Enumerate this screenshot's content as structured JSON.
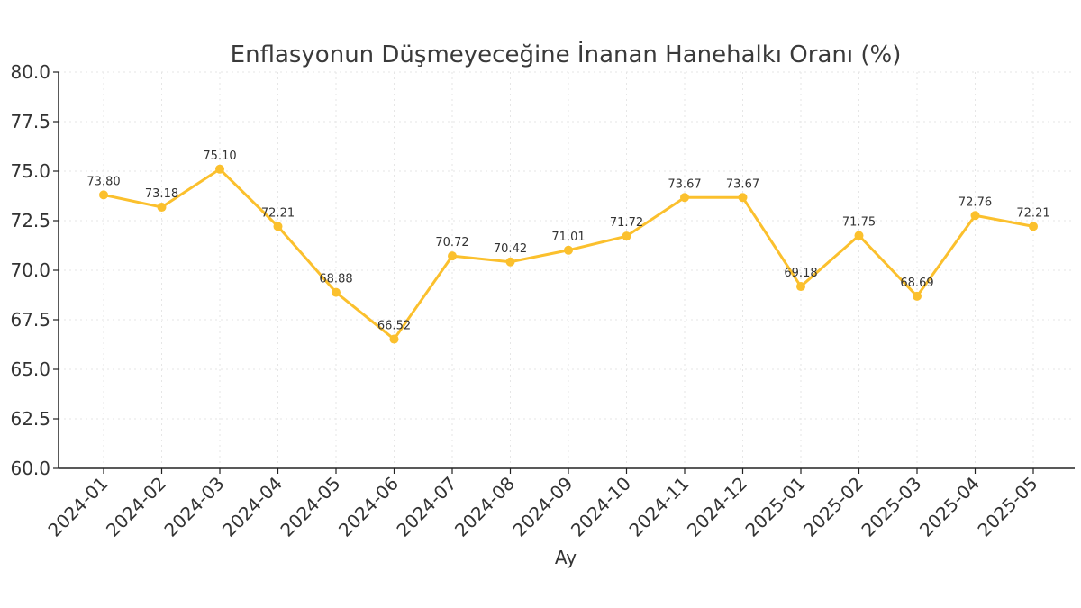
{
  "chart_data": {
    "type": "line",
    "title": "Enflasyonun Düşmeyeceğine İnanan Hanehalkı Oranı (%)",
    "xlabel": "Ay",
    "ylabel": "",
    "categories": [
      "2024-01",
      "2024-02",
      "2024-03",
      "2024-04",
      "2024-05",
      "2024-06",
      "2024-07",
      "2024-08",
      "2024-09",
      "2024-10",
      "2024-11",
      "2024-12",
      "2025-01",
      "2025-02",
      "2025-03",
      "2025-04",
      "2025-05"
    ],
    "series": [
      {
        "values": [
          73.8,
          73.18,
          75.1,
          72.21,
          68.88,
          66.52,
          70.72,
          70.42,
          71.01,
          71.72,
          73.67,
          73.67,
          69.18,
          71.75,
          68.69,
          72.76,
          72.21
        ],
        "labels": [
          "73.80",
          "73.18",
          "75.10",
          "72.21",
          "68.88",
          "66.52",
          "70.72",
          "70.42",
          "71.01",
          "71.72",
          "73.67",
          "73.67",
          "69.18",
          "71.75",
          "68.69",
          "72.76",
          "72.21"
        ],
        "color": "#FBC02D"
      }
    ],
    "ylim": [
      60.0,
      80.0
    ],
    "yticks": [
      "60.0",
      "62.5",
      "65.0",
      "67.5",
      "70.0",
      "72.5",
      "75.0",
      "77.5",
      "80.0"
    ],
    "grid": true,
    "legend": "none"
  }
}
